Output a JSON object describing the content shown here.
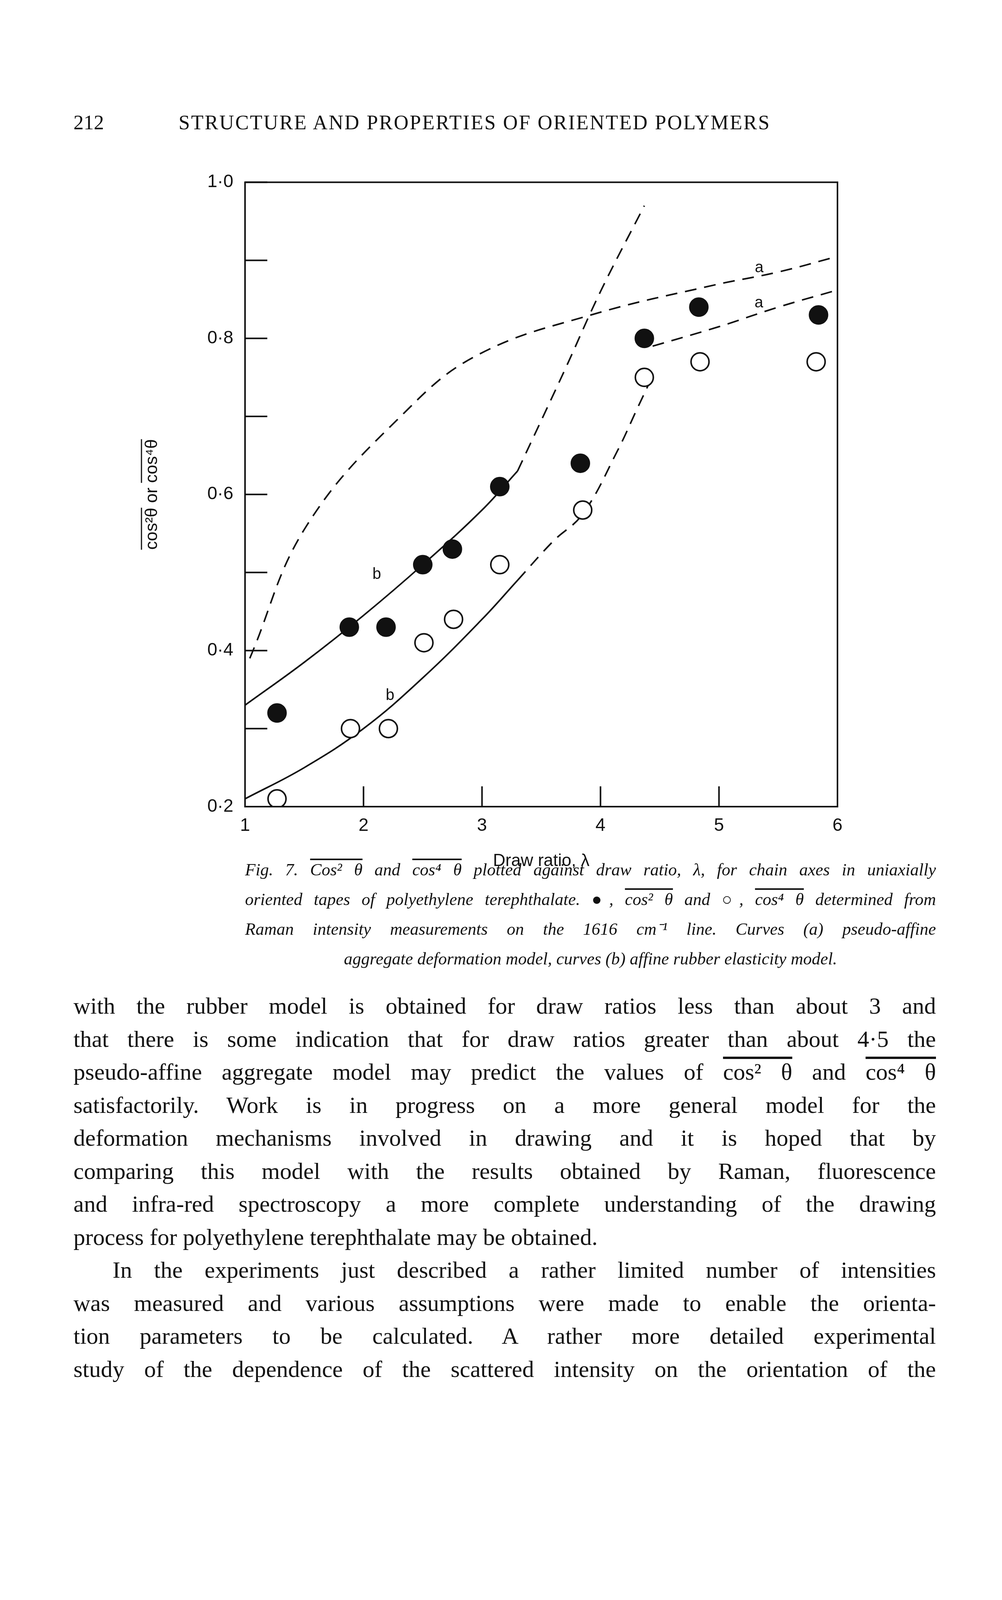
{
  "header": {
    "page_number": "212",
    "running_title": "STRUCTURE AND PROPERTIES OF ORIENTED POLYMERS"
  },
  "chart_data": {
    "type": "scatter",
    "xlabel": "Draw ratio, λ",
    "ylabel": [
      {
        "text": "cos²θ",
        "overline": true
      },
      " or ",
      {
        "text": "cos⁴θ",
        "overline": true
      }
    ],
    "xlim": [
      1,
      6
    ],
    "ylim": [
      0.2,
      1.0
    ],
    "xticks": [
      1,
      2,
      3,
      4,
      5,
      6
    ],
    "yticks": [
      {
        "value": 0.2,
        "label": "0·2"
      },
      {
        "value": 0.3,
        "label": null
      },
      {
        "value": 0.4,
        "label": "0·4"
      },
      {
        "value": 0.5,
        "label": null
      },
      {
        "value": 0.6,
        "label": "0·6"
      },
      {
        "value": 0.7,
        "label": null
      },
      {
        "value": 0.8,
        "label": "0·8"
      },
      {
        "value": 0.9,
        "label": null
      },
      {
        "value": 1.0,
        "label": "1·0"
      }
    ],
    "grid": false,
    "series": [
      {
        "type": "scatter",
        "marker": "filled_circle",
        "color": "#111111",
        "x": [
          1.27,
          1.88,
          2.19,
          2.5,
          2.75,
          3.15,
          3.83,
          4.37,
          4.83,
          5.84
        ],
        "values": [
          0.32,
          0.43,
          0.43,
          0.51,
          0.53,
          0.61,
          0.64,
          0.8,
          0.84,
          0.83
        ]
      },
      {
        "type": "scatter",
        "marker": "open_circle",
        "color": "#111111",
        "x": [
          1.27,
          1.89,
          2.21,
          2.51,
          2.76,
          3.15,
          3.85,
          4.37,
          4.84,
          5.82
        ],
        "values": [
          0.21,
          0.3,
          0.3,
          0.41,
          0.44,
          0.51,
          0.58,
          0.75,
          0.77,
          0.77
        ]
      },
      {
        "type": "line",
        "line_style": "dashed",
        "label": "a",
        "color": "#111111",
        "x": [
          1.04,
          1.52,
          2.38,
          2.98,
          3.92,
          4.95,
          5.5,
          6
        ],
        "values": [
          0.39,
          0.56,
          0.71,
          0.78,
          0.83,
          0.868,
          0.885,
          0.905
        ]
      },
      {
        "type": "line",
        "line_style": "dashed",
        "label": "a",
        "color": "#111111",
        "x": [
          4.44,
          5,
          5.5,
          6
        ],
        "values": [
          0.79,
          0.815,
          0.84,
          0.862
        ]
      },
      {
        "type": "line",
        "line_style": "solid",
        "label": "b",
        "color": "#111111",
        "x": [
          1,
          1.5,
          2,
          2.5,
          3,
          3.3
        ],
        "values": [
          0.33,
          0.385,
          0.445,
          0.51,
          0.58,
          0.63
        ]
      },
      {
        "type": "line",
        "line_style": "solid",
        "label": "b",
        "color": "#111111",
        "x": [
          1,
          1.5,
          2,
          2.5,
          3,
          3.3
        ],
        "values": [
          0.21,
          0.25,
          0.3,
          0.365,
          0.44,
          0.49
        ]
      },
      {
        "type": "line",
        "line_style": "dashed",
        "color": "#111111",
        "x": [
          3.3,
          3.7,
          4.0,
          4.37
        ],
        "values": [
          0.63,
          0.76,
          0.86,
          0.97
        ]
      },
      {
        "type": "line",
        "line_style": "dashed",
        "color": "#111111",
        "x": [
          3.3,
          3.6,
          3.85,
          4.14,
          4.31,
          4.44
        ],
        "values": [
          0.49,
          0.54,
          0.575,
          0.655,
          0.71,
          0.752
        ]
      }
    ]
  },
  "caption": {
    "lines": [
      [
        {
          "text": "Cos² θ",
          "overline": true
        },
        " and ",
        {
          "text": "cos⁴ θ",
          "overline": true
        },
        " plotted against draw ratio, λ, for chain axes in uniaxially"
      ],
      [
        "oriented tapes of polyethylene terephthalate. ●, ",
        {
          "text": "cos² θ",
          "overline": true
        },
        " and ○, ",
        {
          "text": "cos⁴ θ",
          "overline": true
        },
        " determined from"
      ],
      [
        "Raman intensity measurements on the 1616 cm⁻¹ line. Curves (a) pseudo-affine"
      ],
      [
        "aggregate deformation model, curves (b) affine rubber elasticity model."
      ]
    ],
    "label": "Fig. 7."
  },
  "body": {
    "paragraphs": [
      {
        "lines": [
          [
            "with the rubber model is obtained for draw ratios less than about 3 and"
          ],
          [
            "that there is some indication that for draw ratios greater than about 4·5 the"
          ],
          [
            "pseudo-affine aggregate model may predict the values of ",
            {
              "text": "cos² θ",
              "overline": true
            },
            " and ",
            {
              "text": "cos⁴ θ",
              "overline": true
            }
          ],
          [
            "satisfactorily. Work is in progress on a more general model for the"
          ],
          [
            "deformation mechanisms involved in drawing and it is hoped that by"
          ],
          [
            "comparing this model with the results obtained by Raman, fluorescence"
          ],
          [
            "and infra-red spectroscopy a more complete understanding of the drawing"
          ],
          [
            "process for polyethylene terephthalate may be obtained."
          ]
        ]
      },
      {
        "lines": [
          [
            "In the experiments just described a rather limited number of intensities"
          ],
          [
            "was measured and various assumptions were made to enable the orienta-"
          ],
          [
            "tion parameters to be calculated. A rather more detailed experimental"
          ],
          [
            "study of the dependence of the scattered intensity on the orientation of the"
          ]
        ]
      }
    ]
  }
}
